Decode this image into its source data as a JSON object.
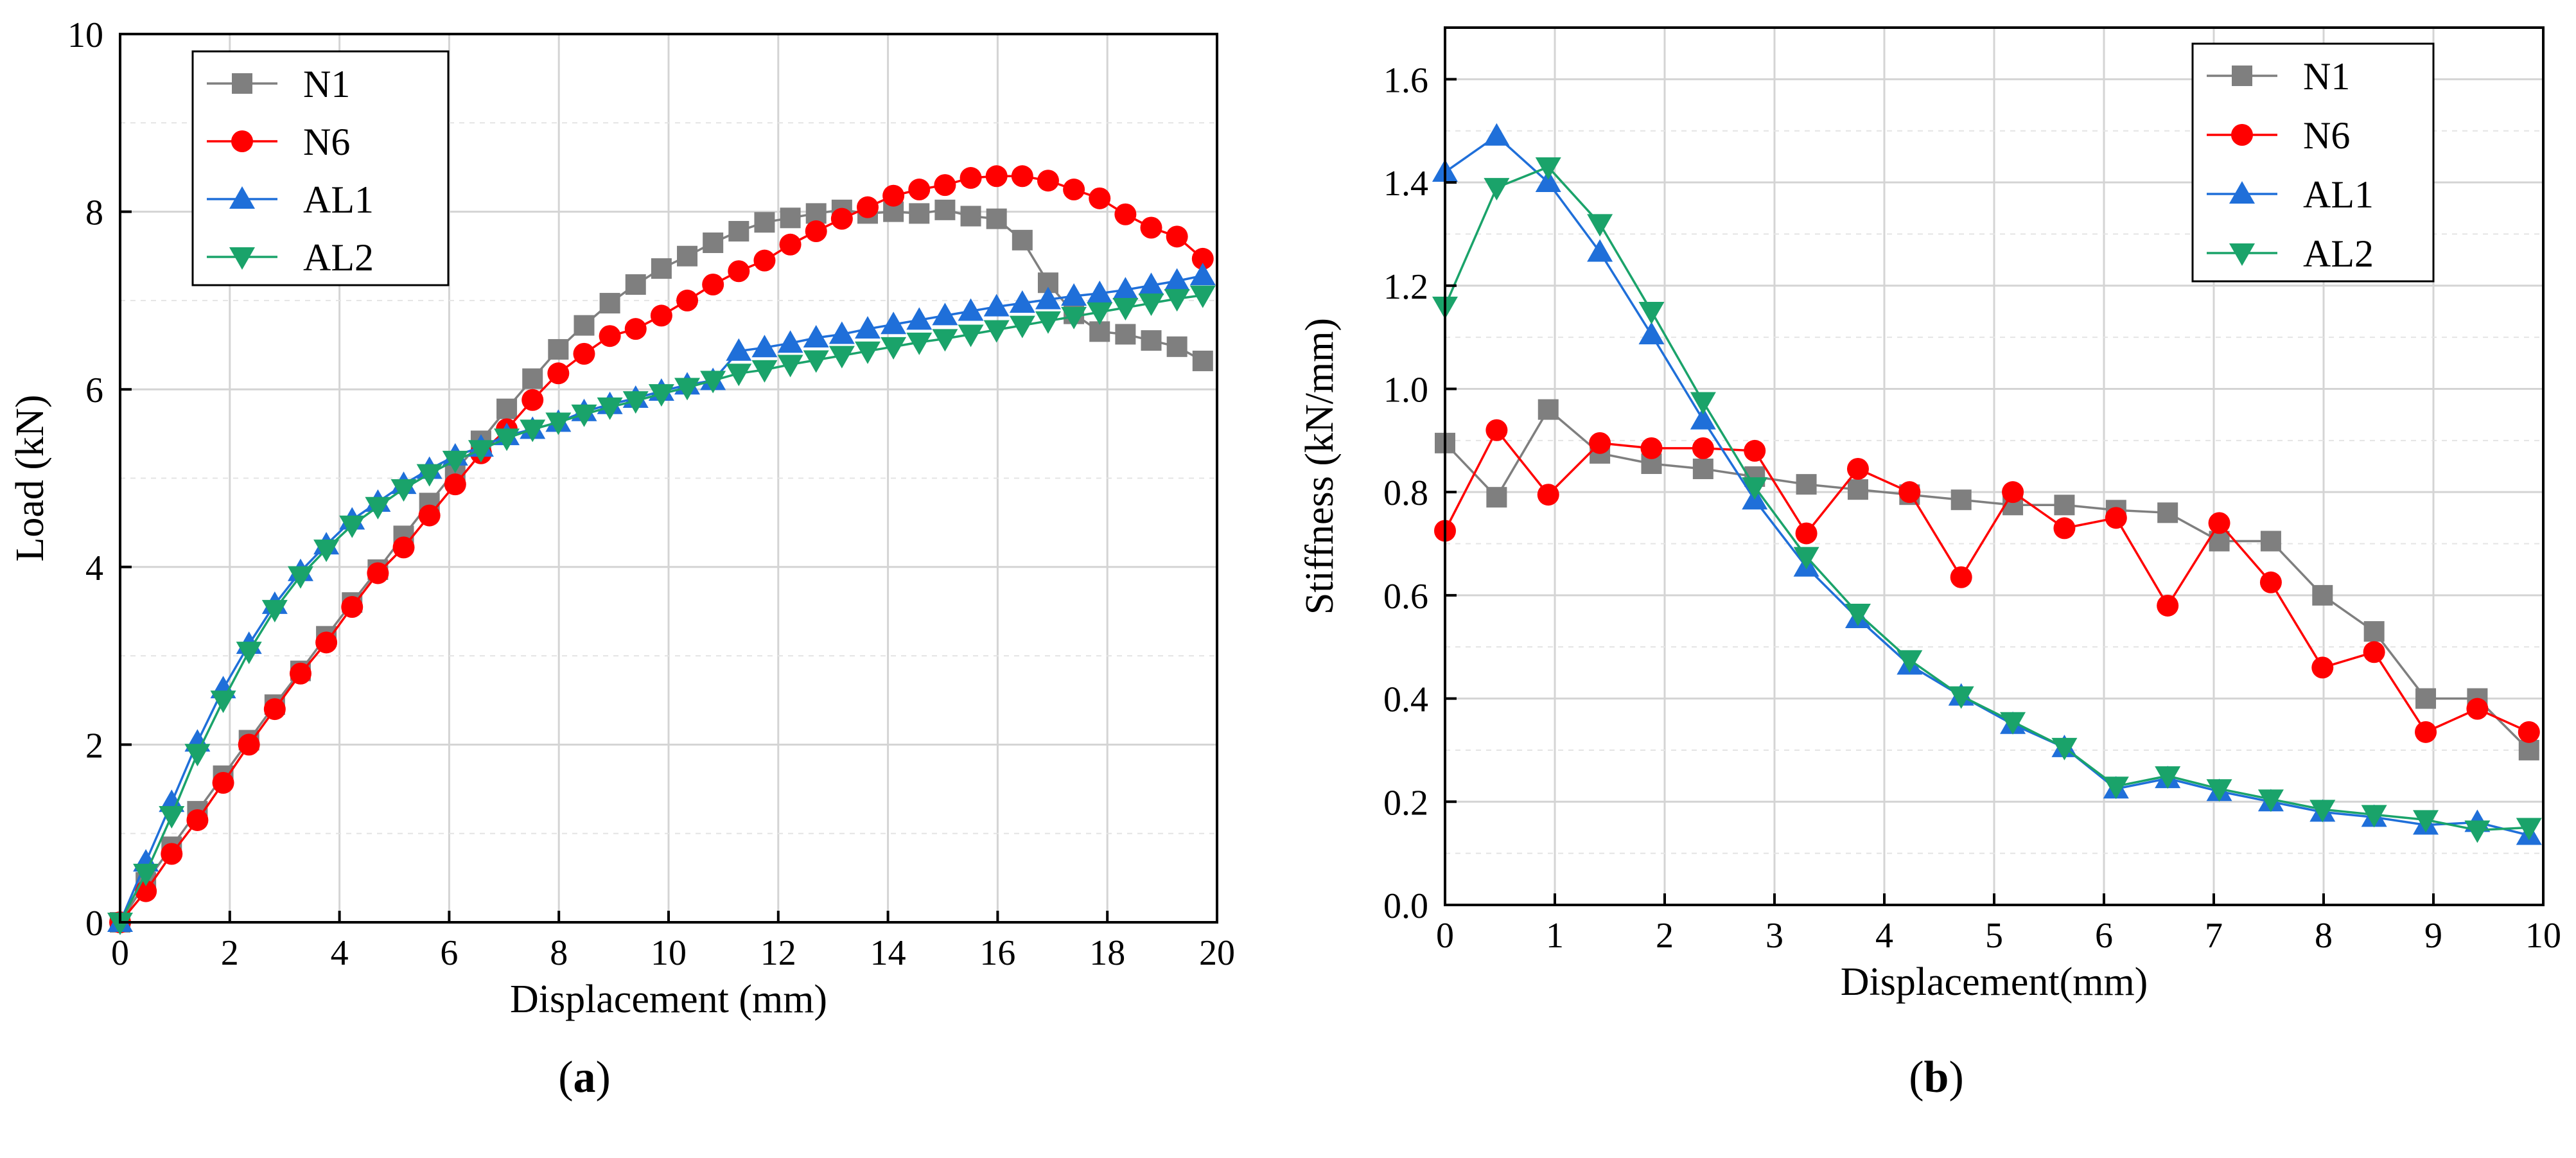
{
  "chart_data": [
    {
      "id": "a",
      "type": "line",
      "caption_label": "a",
      "caption_open": "(",
      "caption_close": ")",
      "xlabel": "Displacement (mm)",
      "ylabel": "Load (kN)",
      "xlim": [
        0,
        20
      ],
      "ylim": [
        0,
        10
      ],
      "xticks": [
        0,
        2,
        4,
        6,
        8,
        10,
        12,
        14,
        16,
        18,
        20
      ],
      "yticks": [
        0,
        2,
        4,
        6,
        8,
        10
      ],
      "grid": true,
      "legend_position": "top-left",
      "series": [
        {
          "name": "N1",
          "color": "#7f7f7f",
          "marker": "square",
          "x": [
            0,
            0.47,
            0.94,
            1.41,
            1.88,
            2.35,
            2.82,
            3.29,
            3.76,
            4.23,
            4.7,
            5.17,
            5.64,
            6.11,
            6.58,
            7.05,
            7.52,
            7.99,
            8.46,
            8.93,
            9.4,
            9.87,
            10.34,
            10.81,
            11.28,
            11.75,
            12.22,
            12.69,
            13.16,
            13.63,
            14.1,
            14.57,
            15.04,
            15.51,
            15.98,
            16.45,
            16.92,
            17.39,
            17.86,
            18.33,
            18.8,
            19.27,
            19.74
          ],
          "y": [
            0,
            0.45,
            0.85,
            1.25,
            1.65,
            2.05,
            2.45,
            2.83,
            3.22,
            3.6,
            3.97,
            4.35,
            4.72,
            5.08,
            5.42,
            5.78,
            6.12,
            6.45,
            6.72,
            6.97,
            7.18,
            7.36,
            7.5,
            7.65,
            7.78,
            7.88,
            7.93,
            7.98,
            8.02,
            7.98,
            8.0,
            7.98,
            8.02,
            7.95,
            7.92,
            7.68,
            7.2,
            6.85,
            6.65,
            6.62,
            6.55,
            6.48,
            6.32
          ]
        },
        {
          "name": "N6",
          "color": "#ff0000",
          "marker": "circle",
          "x": [
            0,
            0.47,
            0.94,
            1.41,
            1.88,
            2.35,
            2.82,
            3.29,
            3.76,
            4.23,
            4.7,
            5.17,
            5.64,
            6.11,
            6.58,
            7.05,
            7.52,
            7.99,
            8.46,
            8.93,
            9.4,
            9.87,
            10.34,
            10.81,
            11.28,
            11.75,
            12.22,
            12.69,
            13.16,
            13.63,
            14.1,
            14.57,
            15.04,
            15.51,
            15.98,
            16.45,
            16.92,
            17.39,
            17.86,
            18.33,
            18.8,
            19.27,
            19.74
          ],
          "y": [
            0,
            0.35,
            0.77,
            1.15,
            1.57,
            2.0,
            2.4,
            2.8,
            3.15,
            3.55,
            3.93,
            4.22,
            4.58,
            4.93,
            5.28,
            5.55,
            5.88,
            6.18,
            6.4,
            6.6,
            6.68,
            6.83,
            7.0,
            7.18,
            7.33,
            7.45,
            7.63,
            7.78,
            7.92,
            8.05,
            8.18,
            8.25,
            8.3,
            8.38,
            8.4,
            8.4,
            8.35,
            8.25,
            8.15,
            7.97,
            7.82,
            7.72,
            7.47
          ]
        },
        {
          "name": "AL1",
          "color": "#1f6fd9",
          "marker": "triangle-up",
          "x": [
            0,
            0.47,
            0.94,
            1.41,
            1.88,
            2.35,
            2.82,
            3.29,
            3.76,
            4.23,
            4.7,
            5.17,
            5.64,
            6.11,
            6.58,
            7.05,
            7.52,
            7.99,
            8.46,
            8.93,
            9.4,
            9.87,
            10.34,
            10.81,
            11.28,
            11.75,
            12.22,
            12.69,
            13.16,
            13.63,
            14.1,
            14.57,
            15.04,
            15.51,
            15.98,
            16.45,
            16.92,
            17.39,
            17.86,
            18.33,
            18.8,
            19.27,
            19.74
          ],
          "y": [
            0,
            0.68,
            1.35,
            2.03,
            2.63,
            3.13,
            3.58,
            3.95,
            4.25,
            4.53,
            4.73,
            4.93,
            5.1,
            5.25,
            5.35,
            5.48,
            5.55,
            5.63,
            5.75,
            5.83,
            5.9,
            5.98,
            6.05,
            6.1,
            6.43,
            6.47,
            6.52,
            6.58,
            6.62,
            6.68,
            6.73,
            6.78,
            6.83,
            6.88,
            6.93,
            6.97,
            7.01,
            7.05,
            7.08,
            7.12,
            7.17,
            7.22,
            7.28
          ]
        },
        {
          "name": "AL2",
          "color": "#1aa36a",
          "marker": "triangle-down",
          "x": [
            0,
            0.47,
            0.94,
            1.41,
            1.88,
            2.35,
            2.82,
            3.29,
            3.76,
            4.23,
            4.7,
            5.17,
            5.64,
            6.11,
            6.58,
            7.05,
            7.52,
            7.99,
            8.46,
            8.93,
            9.4,
            9.87,
            10.34,
            10.81,
            11.28,
            11.75,
            12.22,
            12.69,
            13.16,
            13.63,
            14.1,
            14.57,
            15.04,
            15.51,
            15.98,
            16.45,
            16.92,
            17.39,
            17.86,
            18.33,
            18.8,
            19.27,
            19.74
          ],
          "y": [
            0,
            0.55,
            1.2,
            1.9,
            2.5,
            3.05,
            3.52,
            3.9,
            4.2,
            4.47,
            4.68,
            4.88,
            5.05,
            5.2,
            5.32,
            5.45,
            5.55,
            5.63,
            5.72,
            5.8,
            5.87,
            5.95,
            6.02,
            6.1,
            6.18,
            6.22,
            6.28,
            6.33,
            6.38,
            6.43,
            6.48,
            6.53,
            6.57,
            6.62,
            6.67,
            6.72,
            6.77,
            6.82,
            6.87,
            6.92,
            6.97,
            7.02,
            7.06
          ]
        }
      ]
    },
    {
      "id": "b",
      "type": "line",
      "caption_label": "b",
      "caption_open": "(",
      "caption_close": ")",
      "xlabel": "Displacement(mm)",
      "ylabel": "Stiffness (kN/mm)",
      "xlim": [
        0,
        10
      ],
      "ylim": [
        0,
        1.7
      ],
      "xticks": [
        0,
        1,
        2,
        3,
        4,
        5,
        6,
        7,
        8,
        9,
        10
      ],
      "yticks": [
        0.0,
        0.2,
        0.4,
        0.6,
        0.8,
        1.0,
        1.2,
        1.4,
        1.6
      ],
      "ytick_labels": [
        "0.0",
        "0.2",
        "0.4",
        "0.6",
        "0.8",
        "1.0",
        "1.2",
        "1.4",
        "1.6"
      ],
      "grid": true,
      "legend_position": "top-right",
      "series": [
        {
          "name": "N1",
          "color": "#7f7f7f",
          "marker": "square",
          "x": [
            0,
            0.47,
            0.94,
            1.41,
            1.88,
            2.35,
            2.82,
            3.29,
            3.76,
            4.23,
            4.7,
            5.17,
            5.64,
            6.11,
            6.58,
            7.05,
            7.52,
            7.99,
            8.46,
            8.93,
            9.4,
            9.87
          ],
          "y": [
            0.895,
            0.79,
            0.96,
            0.875,
            0.855,
            0.845,
            0.83,
            0.815,
            0.805,
            0.795,
            0.785,
            0.775,
            0.775,
            0.765,
            0.76,
            0.705,
            0.705,
            0.6,
            0.53,
            0.4,
            0.4,
            0.3
          ]
        },
        {
          "name": "N6",
          "color": "#ff0000",
          "marker": "circle",
          "x": [
            0,
            0.47,
            0.94,
            1.41,
            1.88,
            2.35,
            2.82,
            3.29,
            3.76,
            4.23,
            4.7,
            5.17,
            5.64,
            6.11,
            6.58,
            7.05,
            7.52,
            7.99,
            8.46,
            8.93,
            9.4,
            9.87
          ],
          "y": [
            0.725,
            0.92,
            0.795,
            0.895,
            0.885,
            0.885,
            0.88,
            0.72,
            0.845,
            0.8,
            0.635,
            0.8,
            0.73,
            0.75,
            0.58,
            0.74,
            0.625,
            0.46,
            0.49,
            0.335,
            0.38,
            0.335
          ]
        },
        {
          "name": "AL1",
          "color": "#1f6fd9",
          "marker": "triangle-up",
          "x": [
            0,
            0.47,
            0.94,
            1.41,
            1.88,
            2.35,
            2.82,
            3.29,
            3.76,
            4.23,
            4.7,
            5.17,
            5.64,
            6.11,
            6.58,
            7.05,
            7.52,
            7.99,
            8.46,
            8.93,
            9.4,
            9.87
          ],
          "y": [
            1.42,
            1.49,
            1.4,
            1.265,
            1.105,
            0.94,
            0.785,
            0.655,
            0.555,
            0.465,
            0.405,
            0.35,
            0.305,
            0.225,
            0.245,
            0.22,
            0.2,
            0.18,
            0.17,
            0.155,
            0.16,
            0.135
          ]
        },
        {
          "name": "AL2",
          "color": "#1aa36a",
          "marker": "triangle-down",
          "x": [
            0,
            0.47,
            0.94,
            1.41,
            1.88,
            2.35,
            2.82,
            3.29,
            3.76,
            4.23,
            4.7,
            5.17,
            5.64,
            6.11,
            6.58,
            7.05,
            7.52,
            7.99,
            8.46,
            8.93,
            9.4,
            9.87
          ],
          "y": [
            1.16,
            1.39,
            1.43,
            1.32,
            1.15,
            0.975,
            0.81,
            0.675,
            0.565,
            0.475,
            0.405,
            0.355,
            0.305,
            0.23,
            0.25,
            0.225,
            0.205,
            0.185,
            0.175,
            0.165,
            0.145,
            0.15
          ]
        }
      ]
    }
  ]
}
